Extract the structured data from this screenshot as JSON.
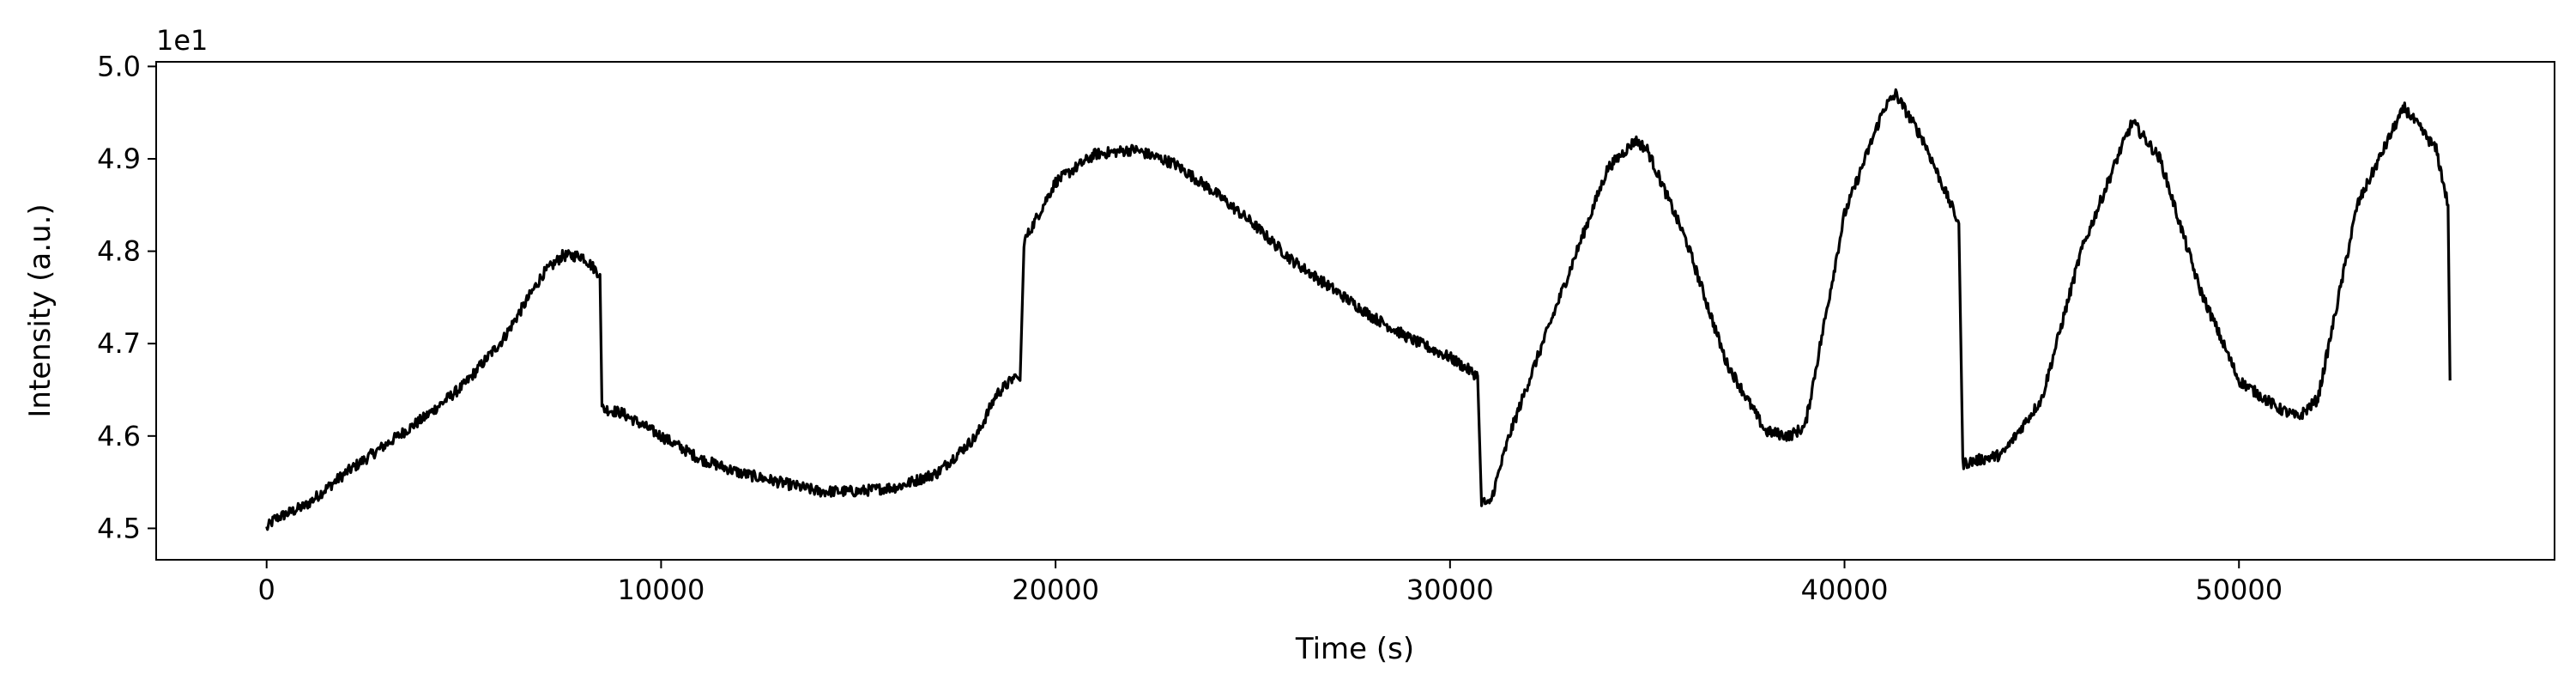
{
  "chart_data": {
    "type": "line",
    "title": "",
    "xlabel": "Time (s)",
    "ylabel": "Intensity (a.u.)",
    "y_offset_label": "1e1",
    "xlim": [
      -2800,
      58000
    ],
    "ylim": [
      4.466,
      5.005
    ],
    "x_ticks": [
      0,
      10000,
      20000,
      30000,
      40000,
      50000
    ],
    "x_tick_labels": [
      "0",
      "10000",
      "20000",
      "30000",
      "40000",
      "50000"
    ],
    "y_ticks": [
      4.5,
      4.6,
      4.7,
      4.8,
      4.9,
      5.0
    ],
    "y_tick_labels": [
      "4.5",
      "4.6",
      "4.7",
      "4.8",
      "4.9",
      "5.0"
    ],
    "grid": false,
    "line_color": "#000000",
    "noise_amplitude": 0.012,
    "series": [
      {
        "x": [
          0,
          200,
          1000,
          2000,
          3000,
          4000,
          5000,
          6000,
          7000,
          7500,
          8000,
          8450,
          8500,
          9000,
          10000,
          11000,
          12000,
          13000,
          14000,
          15000,
          16000,
          17000,
          18000,
          18500,
          19000,
          19100,
          19200,
          20000,
          21000,
          22000,
          23000,
          24000,
          25000,
          26000,
          27000,
          28000,
          29000,
          30000,
          30700,
          30800,
          31000,
          31500,
          32000,
          33000,
          34000,
          34700,
          35000,
          36000,
          37000,
          38000,
          38600,
          39000,
          40000,
          41000,
          41300,
          42000,
          42900,
          43000,
          43500,
          44000,
          45000,
          46000,
          47000,
          47300,
          48000,
          49000,
          50000,
          51000,
          51500,
          52000,
          53000,
          54000,
          54200,
          55000,
          55300,
          55350
        ],
        "y": [
          4.5,
          4.51,
          4.525,
          4.56,
          4.59,
          4.62,
          4.655,
          4.705,
          4.775,
          4.795,
          4.795,
          4.775,
          4.63,
          4.625,
          4.6,
          4.575,
          4.56,
          4.55,
          4.54,
          4.54,
          4.545,
          4.56,
          4.6,
          4.645,
          4.665,
          4.66,
          4.81,
          4.875,
          4.905,
          4.91,
          4.895,
          4.865,
          4.83,
          4.79,
          4.76,
          4.73,
          4.705,
          4.685,
          4.665,
          4.53,
          4.525,
          4.6,
          4.66,
          4.775,
          4.89,
          4.92,
          4.91,
          4.81,
          4.68,
          4.605,
          4.6,
          4.61,
          4.84,
          4.955,
          4.97,
          4.92,
          4.83,
          4.57,
          4.575,
          4.58,
          4.64,
          4.8,
          4.91,
          4.94,
          4.9,
          4.76,
          4.66,
          4.63,
          4.62,
          4.64,
          4.85,
          4.94,
          4.955,
          4.91,
          4.85,
          4.66
        ]
      }
    ]
  }
}
